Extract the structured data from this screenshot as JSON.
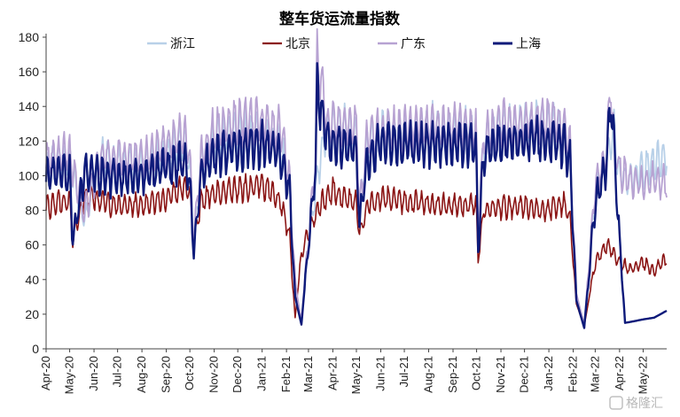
{
  "watermark": "格隆汇",
  "chart_data": {
    "type": "line",
    "title": "整车货运流量指数",
    "xlabel": "",
    "ylabel": "",
    "ylim": [
      0,
      180
    ],
    "yticks": [
      0,
      20,
      40,
      60,
      80,
      100,
      120,
      140,
      160,
      180
    ],
    "grid": false,
    "legend_position": "top",
    "x_range": [
      "2020-04-01",
      "2022-05-31"
    ],
    "xtick_labels": [
      "Apr-20",
      "May-20",
      "Jun-20",
      "Jul-20",
      "Aug-20",
      "Sep-20",
      "Oct-20",
      "Nov-20",
      "Dec-20",
      "Jan-21",
      "Feb-21",
      "Mar-21",
      "Apr-21",
      "May-21",
      "Jun-21",
      "Jul-21",
      "Aug-21",
      "Sep-21",
      "Oct-21",
      "Nov-21",
      "Dec-21",
      "Jan-22",
      "Feb-22",
      "Mar-22",
      "Apr-22",
      "May-22"
    ],
    "xtick_dates": [
      "2020-04-01",
      "2020-05-01",
      "2020-06-01",
      "2020-07-01",
      "2020-08-01",
      "2020-09-01",
      "2020-10-01",
      "2020-11-01",
      "2020-12-01",
      "2021-01-01",
      "2021-02-01",
      "2021-03-01",
      "2021-04-01",
      "2021-05-01",
      "2021-06-01",
      "2021-07-01",
      "2021-08-01",
      "2021-09-01",
      "2021-10-01",
      "2021-11-01",
      "2021-12-01",
      "2022-01-01",
      "2022-02-01",
      "2022-03-01",
      "2022-04-01",
      "2022-05-01"
    ],
    "series": [
      {
        "name": "浙江",
        "color": "#b8d0e8",
        "width": 1.8,
        "x": [
          "2020-04-01",
          "2020-04-20",
          "2020-05-01",
          "2020-05-20",
          "2020-06-10",
          "2020-07-01",
          "2020-08-01",
          "2020-09-01",
          "2020-09-25",
          "2020-10-01",
          "2020-10-06",
          "2020-10-15",
          "2020-11-01",
          "2020-12-01",
          "2021-01-01",
          "2021-01-25",
          "2021-02-05",
          "2021-02-12",
          "2021-02-20",
          "2021-03-01",
          "2021-03-15",
          "2021-03-25",
          "2021-04-05",
          "2021-05-01",
          "2021-05-05",
          "2021-05-15",
          "2021-06-01",
          "2021-07-01",
          "2021-08-01",
          "2021-09-01",
          "2021-09-30",
          "2021-10-03",
          "2021-10-10",
          "2021-11-01",
          "2021-12-01",
          "2022-01-01",
          "2022-01-20",
          "2022-01-28",
          "2022-02-05",
          "2022-02-15",
          "2022-03-01",
          "2022-03-15",
          "2022-03-25",
          "2022-04-01",
          "2022-04-15",
          "2022-05-01",
          "2022-05-15",
          "2022-05-31"
        ],
        "y": [
          104,
          110,
          108,
          75,
          110,
          108,
          105,
          112,
          118,
          104,
          60,
          106,
          120,
          125,
          122,
          118,
          90,
          35,
          14,
          62,
          108,
          125,
          128,
          125,
          80,
          118,
          126,
          124,
          128,
          126,
          126,
          66,
          120,
          128,
          130,
          130,
          125,
          116,
          30,
          13,
          90,
          108,
          125,
          100,
          98,
          103,
          108,
          112
        ]
      },
      {
        "name": "北京",
        "color": "#8b1515",
        "width": 1.6,
        "x": [
          "2020-04-01",
          "2020-04-15",
          "2020-05-01",
          "2020-05-05",
          "2020-05-20",
          "2020-06-10",
          "2020-07-01",
          "2020-08-01",
          "2020-09-01",
          "2020-09-25",
          "2020-10-01",
          "2020-10-06",
          "2020-10-15",
          "2020-11-01",
          "2020-12-01",
          "2021-01-01",
          "2021-01-25",
          "2021-02-05",
          "2021-02-12",
          "2021-02-20",
          "2021-03-01",
          "2021-03-15",
          "2021-04-01",
          "2021-04-10",
          "2021-05-01",
          "2021-05-05",
          "2021-05-15",
          "2021-06-01",
          "2021-07-01",
          "2021-08-01",
          "2021-09-01",
          "2021-09-30",
          "2021-10-03",
          "2021-10-10",
          "2021-11-01",
          "2021-12-01",
          "2022-01-01",
          "2022-01-20",
          "2022-01-28",
          "2022-02-05",
          "2022-02-15",
          "2022-03-01",
          "2022-03-15",
          "2022-03-25",
          "2022-04-01",
          "2022-04-15",
          "2022-05-01",
          "2022-05-15",
          "2022-05-31"
        ],
        "y": [
          82,
          84,
          85,
          63,
          88,
          86,
          82,
          83,
          87,
          94,
          90,
          60,
          85,
          90,
          92,
          95,
          85,
          65,
          18,
          55,
          68,
          82,
          92,
          88,
          84,
          65,
          82,
          88,
          85,
          84,
          82,
          84,
          52,
          80,
          82,
          82,
          80,
          84,
          75,
          26,
          13,
          50,
          60,
          55,
          50,
          46,
          50,
          45,
          52
        ]
      },
      {
        "name": "广东",
        "color": "#b7a2d2",
        "width": 1.8,
        "x": [
          "2020-04-01",
          "2020-04-20",
          "2020-05-01",
          "2020-05-20",
          "2020-06-10",
          "2020-07-01",
          "2020-08-01",
          "2020-09-01",
          "2020-09-25",
          "2020-10-01",
          "2020-10-06",
          "2020-10-15",
          "2020-11-01",
          "2020-12-01",
          "2021-01-01",
          "2021-01-25",
          "2021-02-05",
          "2021-02-12",
          "2021-02-20",
          "2021-03-01",
          "2021-03-10",
          "2021-03-12",
          "2021-03-25",
          "2021-04-05",
          "2021-05-01",
          "2021-05-05",
          "2021-05-15",
          "2021-06-01",
          "2021-07-01",
          "2021-08-01",
          "2021-09-01",
          "2021-09-30",
          "2021-10-03",
          "2021-10-10",
          "2021-11-01",
          "2021-12-01",
          "2022-01-01",
          "2022-01-20",
          "2022-01-28",
          "2022-02-05",
          "2022-02-15",
          "2022-03-01",
          "2022-03-15",
          "2022-03-21",
          "2022-03-25",
          "2022-04-01",
          "2022-04-15",
          "2022-05-01",
          "2022-05-15",
          "2022-05-31"
        ],
        "y": [
          108,
          112,
          112,
          78,
          112,
          110,
          110,
          118,
          124,
          110,
          62,
          110,
          126,
          132,
          130,
          126,
          98,
          38,
          16,
          65,
          110,
          168,
          130,
          130,
          128,
          80,
          122,
          126,
          126,
          128,
          128,
          128,
          68,
          122,
          130,
          130,
          132,
          128,
          118,
          32,
          14,
          95,
          112,
          156,
          118,
          104,
          96,
          95,
          97,
          96
        ]
      },
      {
        "name": "上海",
        "color": "#0d1a7a",
        "width": 2.4,
        "x": [
          "2020-04-01",
          "2020-04-20",
          "2020-05-01",
          "2020-05-05",
          "2020-05-20",
          "2020-06-10",
          "2020-07-01",
          "2020-08-01",
          "2020-09-01",
          "2020-09-25",
          "2020-10-01",
          "2020-10-06",
          "2020-10-15",
          "2020-11-01",
          "2020-12-01",
          "2021-01-01",
          "2021-01-25",
          "2021-02-05",
          "2021-02-12",
          "2021-02-20",
          "2021-03-01",
          "2021-03-10",
          "2021-03-12",
          "2021-03-25",
          "2021-04-05",
          "2021-05-01",
          "2021-05-05",
          "2021-05-15",
          "2021-06-01",
          "2021-07-01",
          "2021-08-01",
          "2021-09-01",
          "2021-09-30",
          "2021-10-03",
          "2021-10-10",
          "2021-11-01",
          "2021-12-01",
          "2022-01-01",
          "2022-01-20",
          "2022-01-28",
          "2022-02-05",
          "2022-02-15",
          "2022-03-01",
          "2022-03-15",
          "2022-03-21",
          "2022-03-25",
          "2022-03-31",
          "2022-04-08",
          "2022-04-20",
          "2022-05-01",
          "2022-05-15",
          "2022-05-31"
        ],
        "y": [
          100,
          102,
          100,
          63,
          102,
          100,
          98,
          100,
          105,
          108,
          95,
          56,
          100,
          112,
          115,
          118,
          112,
          90,
          30,
          14,
          60,
          105,
          150,
          120,
          118,
          115,
          72,
          110,
          118,
          118,
          118,
          118,
          118,
          58,
          112,
          120,
          120,
          120,
          118,
          108,
          28,
          12,
          85,
          105,
          146,
          115,
          70,
          15,
          16,
          17,
          18,
          22
        ]
      }
    ]
  }
}
